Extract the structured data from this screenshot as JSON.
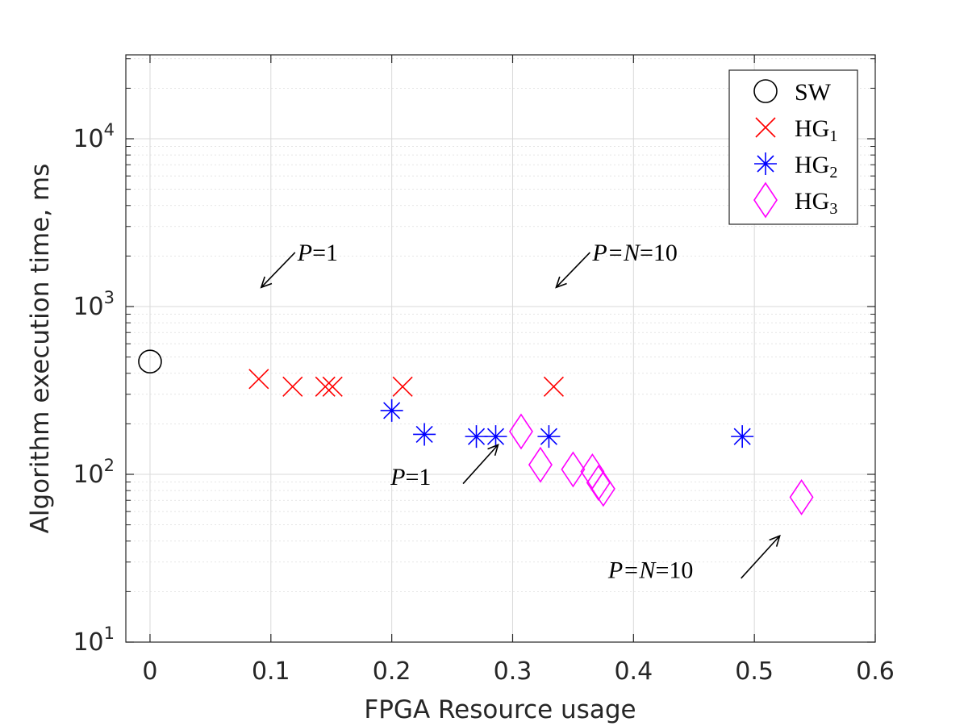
{
  "chart_data": {
    "type": "scatter",
    "xlabel": "FPGA Resource usage",
    "ylabel": "Algorithm execution time, ms",
    "xlim": [
      -0.02,
      0.6
    ],
    "ylim": [
      10,
      31623
    ],
    "yscale": "log",
    "grid": true,
    "legend_position": "top-right",
    "x_ticks": [
      {
        "value": 0,
        "label": "0"
      },
      {
        "value": 0.1,
        "label": "0.1"
      },
      {
        "value": 0.2,
        "label": "0.2"
      },
      {
        "value": 0.3,
        "label": "0.3"
      },
      {
        "value": 0.4,
        "label": "0.4"
      },
      {
        "value": 0.5,
        "label": "0.5"
      },
      {
        "value": 0.6,
        "label": "0.6"
      }
    ],
    "y_ticks": [
      {
        "value": 10,
        "base": "10",
        "exp": "1"
      },
      {
        "value": 100,
        "base": "10",
        "exp": "2"
      },
      {
        "value": 1000,
        "base": "10",
        "exp": "3"
      },
      {
        "value": 10000,
        "base": "10",
        "exp": "4"
      }
    ],
    "series": [
      {
        "name": "SW",
        "marker": "circle",
        "color": "#000000",
        "legend_main": "SW",
        "legend_sub": "",
        "points": [
          {
            "x": 0.0,
            "y": 470
          }
        ]
      },
      {
        "name": "HG1",
        "marker": "x",
        "color": "#ff0000",
        "legend_main": "HG",
        "legend_sub": "1",
        "points": [
          {
            "x": 0.09,
            "y": 370
          },
          {
            "x": 0.118,
            "y": 333
          },
          {
            "x": 0.145,
            "y": 333
          },
          {
            "x": 0.151,
            "y": 333
          },
          {
            "x": 0.209,
            "y": 333
          },
          {
            "x": 0.334,
            "y": 333
          }
        ]
      },
      {
        "name": "HG2",
        "marker": "asterisk",
        "color": "#0000ff",
        "legend_main": "HG",
        "legend_sub": "2",
        "points": [
          {
            "x": 0.2,
            "y": 240
          },
          {
            "x": 0.227,
            "y": 173
          },
          {
            "x": 0.27,
            "y": 168
          },
          {
            "x": 0.286,
            "y": 168
          },
          {
            "x": 0.33,
            "y": 168
          },
          {
            "x": 0.49,
            "y": 168
          }
        ]
      },
      {
        "name": "HG3",
        "marker": "diamond",
        "color": "#ff00ff",
        "legend_main": "HG",
        "legend_sub": "3",
        "points": [
          {
            "x": 0.307,
            "y": 180
          },
          {
            "x": 0.323,
            "y": 114
          },
          {
            "x": 0.35,
            "y": 107
          },
          {
            "x": 0.366,
            "y": 104
          },
          {
            "x": 0.371,
            "y": 89
          },
          {
            "x": 0.375,
            "y": 82
          },
          {
            "x": 0.539,
            "y": 73
          }
        ]
      }
    ],
    "annotations": [
      {
        "text": "=1",
        "italic_prefix": "P",
        "tx": 0.122,
        "ty": 2100,
        "ax1": 0.12,
        "ay1": 2100,
        "ax2": 0.092,
        "ay2": 1300
      },
      {
        "text": "=10",
        "italic_prefix": "P=N",
        "tx": 0.366,
        "ty": 2100,
        "ax1": 0.364,
        "ay1": 2100,
        "ax2": 0.336,
        "ay2": 1300
      },
      {
        "text": "=1",
        "italic_prefix": "P",
        "tx": 0.199,
        "ty": 97,
        "ax1": 0.259,
        "ay1": 88,
        "ax2": 0.288,
        "ay2": 150
      },
      {
        "text": "=10",
        "italic_prefix": "P=N",
        "tx": 0.379,
        "ty": 27,
        "ax1": 0.489,
        "ay1": 24,
        "ax2": 0.521,
        "ay2": 43
      }
    ]
  }
}
